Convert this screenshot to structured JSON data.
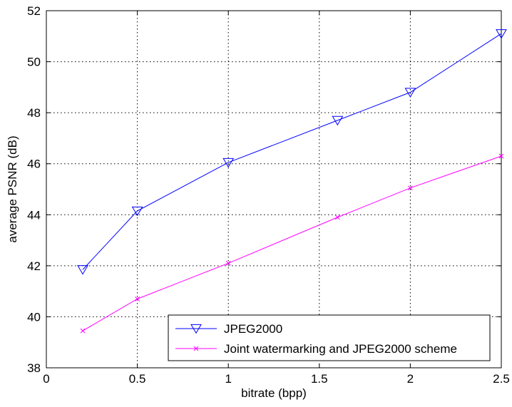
{
  "chart_data": {
    "type": "line",
    "title": "",
    "xlabel": "bitrate (bpp)",
    "ylabel": "average PSNR (dB)",
    "xlim": [
      0,
      2.5
    ],
    "ylim": [
      38,
      52
    ],
    "xticks": [
      0,
      0.5,
      1,
      1.5,
      2,
      2.5
    ],
    "xtick_labels": [
      "0",
      "0.5",
      "1",
      "1.5",
      "2",
      "2.5"
    ],
    "yticks": [
      38,
      40,
      42,
      44,
      46,
      48,
      50,
      52
    ],
    "ytick_labels": [
      "38",
      "40",
      "42",
      "44",
      "46",
      "48",
      "50",
      "52"
    ],
    "grid": true,
    "grid_style": "dotted",
    "legend_position": "bottom-right",
    "series": [
      {
        "name": "JPEG2000",
        "color": "#0000ff",
        "marker": "triangle-down",
        "x": [
          0.2,
          0.5,
          1.0,
          1.6,
          2.0,
          2.5
        ],
        "y": [
          41.85,
          44.15,
          46.05,
          47.7,
          48.8,
          51.1
        ]
      },
      {
        "name": "Joint watermarking and JPEG2000 scheme",
        "color": "#ff00ff",
        "marker": "x",
        "x": [
          0.2,
          0.5,
          1.0,
          1.6,
          2.0,
          2.5
        ],
        "y": [
          39.45,
          40.7,
          42.1,
          43.9,
          45.05,
          46.3
        ]
      }
    ]
  }
}
